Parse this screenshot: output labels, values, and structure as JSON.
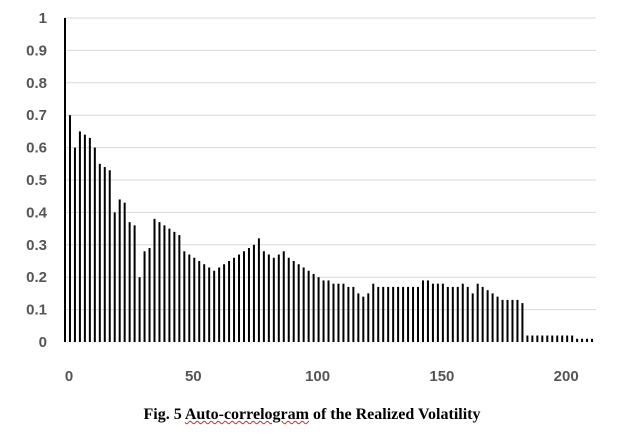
{
  "chart_data": {
    "type": "bar",
    "title": "",
    "xlabel": "",
    "ylabel": "",
    "xlim": [
      0,
      214
    ],
    "ylim": [
      0,
      1
    ],
    "grid": "horizontal",
    "legend": "none",
    "bar_color": "#000000",
    "grid_color": "#d9d9d9",
    "x_ticks": [
      0,
      50,
      100,
      150,
      200
    ],
    "y_ticks": [
      0,
      0.1,
      0.2,
      0.3,
      0.4,
      0.5,
      0.6,
      0.7,
      0.8,
      0.9,
      1
    ],
    "y_tick_labels": [
      "0",
      "0.1",
      "0.2",
      "0.3",
      "0.4",
      "0.5",
      "0.6",
      "0.7",
      "0.8",
      "0.9",
      "1"
    ],
    "x_tick_labels": [
      "0",
      "50",
      "100",
      "150",
      "200"
    ],
    "x": [
      0,
      2,
      4,
      6,
      8,
      10,
      12,
      14,
      16,
      18,
      20,
      22,
      24,
      26,
      28,
      30,
      32,
      34,
      36,
      38,
      40,
      42,
      44,
      46,
      48,
      50,
      52,
      54,
      56,
      58,
      60,
      62,
      64,
      66,
      68,
      70,
      72,
      74,
      76,
      78,
      80,
      82,
      84,
      86,
      88,
      90,
      92,
      94,
      96,
      98,
      100,
      102,
      104,
      106,
      108,
      110,
      112,
      114,
      116,
      118,
      120,
      122,
      124,
      126,
      128,
      130,
      132,
      134,
      136,
      138,
      140,
      142,
      144,
      146,
      148,
      150,
      152,
      154,
      156,
      158,
      160,
      162,
      164,
      166,
      168,
      170,
      172,
      174,
      176,
      178,
      180,
      182,
      184,
      186,
      188,
      190,
      192,
      194,
      196,
      198,
      200,
      202,
      204,
      206,
      208,
      210,
      212
    ],
    "values": [
      1.0,
      0.7,
      0.6,
      0.65,
      0.64,
      0.63,
      0.6,
      0.55,
      0.54,
      0.53,
      0.4,
      0.44,
      0.43,
      0.37,
      0.36,
      0.2,
      0.28,
      0.29,
      0.38,
      0.37,
      0.36,
      0.35,
      0.34,
      0.33,
      0.28,
      0.27,
      0.26,
      0.25,
      0.24,
      0.23,
      0.22,
      0.23,
      0.24,
      0.25,
      0.26,
      0.27,
      0.28,
      0.29,
      0.3,
      0.32,
      0.28,
      0.27,
      0.26,
      0.27,
      0.28,
      0.26,
      0.25,
      0.24,
      0.23,
      0.22,
      0.21,
      0.2,
      0.19,
      0.19,
      0.18,
      0.18,
      0.18,
      0.17,
      0.17,
      0.15,
      0.14,
      0.15,
      0.18,
      0.17,
      0.17,
      0.17,
      0.17,
      0.17,
      0.17,
      0.17,
      0.17,
      0.17,
      0.19,
      0.19,
      0.18,
      0.18,
      0.18,
      0.17,
      0.17,
      0.17,
      0.18,
      0.17,
      0.15,
      0.18,
      0.17,
      0.16,
      0.15,
      0.14,
      0.13,
      0.13,
      0.13,
      0.13,
      0.12,
      0.02,
      0.02,
      0.02,
      0.02,
      0.02,
      0.02,
      0.02,
      0.02,
      0.02,
      0.02,
      0.01,
      0.01,
      0.01,
      0.01
    ]
  },
  "caption": {
    "prefix": "Fig. 5 ",
    "underlined": "Auto-correlogram",
    "suffix": " of the Realized Volatility"
  }
}
